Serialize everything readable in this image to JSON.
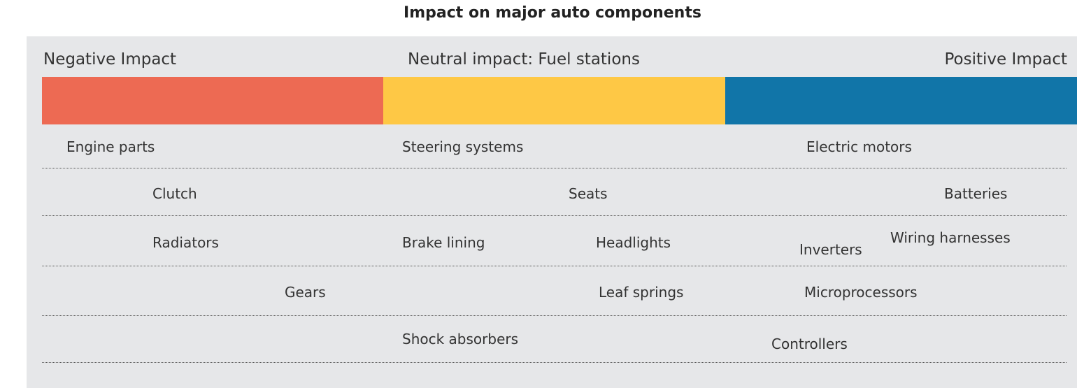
{
  "title": "Impact on major auto components",
  "impact_scale": [
    {
      "label": "Negative Impact",
      "color": "#ed6a53"
    },
    {
      "label": "Neutral impact: Fuel stations",
      "color": "#fec845"
    },
    {
      "label": "Positive Impact",
      "color": "#1175a8"
    }
  ],
  "components": [
    "Engine parts",
    "Steering systems",
    "Electric motors",
    "Clutch",
    "Seats",
    "Batteries",
    "Radiators",
    "Brake lining",
    "Headlights",
    "Inverters",
    "Wiring harnesses",
    "Gears",
    "Leaf springs",
    "Microprocessors",
    "Shock absorbers",
    "Controllers"
  ]
}
